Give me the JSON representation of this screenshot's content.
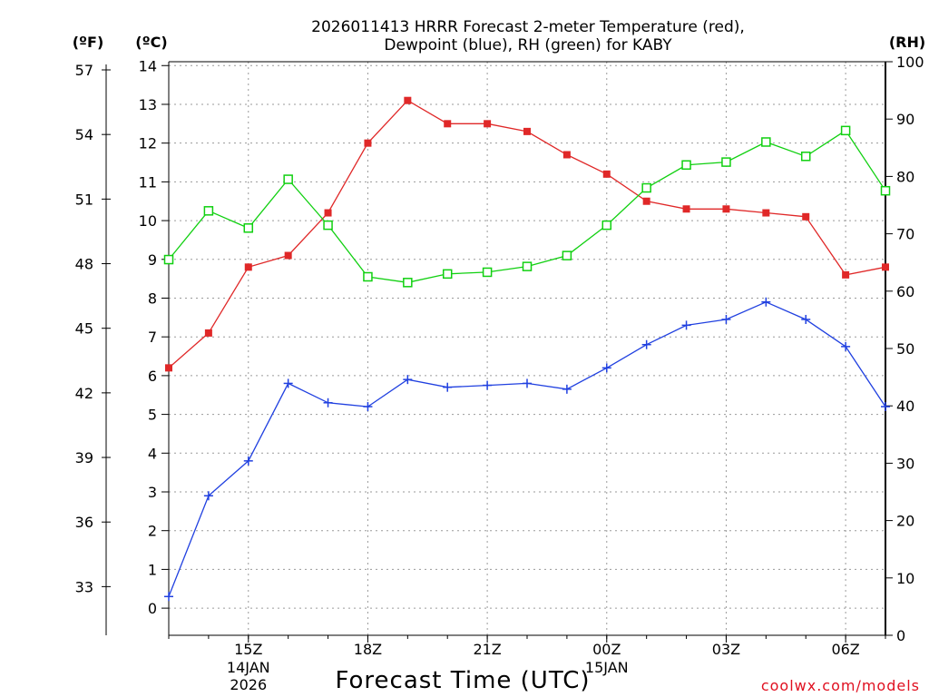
{
  "chart_data": {
    "type": "line",
    "title_lines": [
      "2026011413 HRRR Forecast 2-meter Temperature (red),",
      "Dewpoint (blue), RH (green) for KABY"
    ],
    "xlabel": "Forecast Time (UTC)",
    "credit": "coolwx.com/models",
    "units": {
      "fahrenheit": "(ºF)",
      "celsius": "(ºC)",
      "rh": "(RH)"
    },
    "x_hours": [
      13,
      14,
      15,
      16,
      17,
      18,
      19,
      20,
      21,
      22,
      23,
      24,
      25,
      26,
      27,
      28,
      29,
      30,
      31
    ],
    "xlim": [
      13,
      31
    ],
    "x_ticks": [
      {
        "x": 15,
        "label": "15Z",
        "sublabels": [
          "14JAN",
          "2026"
        ]
      },
      {
        "x": 18,
        "label": "18Z",
        "sublabels": []
      },
      {
        "x": 21,
        "label": "21Z",
        "sublabels": []
      },
      {
        "x": 24,
        "label": "00Z",
        "sublabels": [
          "15JAN"
        ]
      },
      {
        "x": 27,
        "label": "03Z",
        "sublabels": []
      },
      {
        "x": 30,
        "label": "06Z",
        "sublabels": []
      }
    ],
    "y_celsius": {
      "range": [
        -0.7,
        14.1
      ],
      "ticks": [
        0,
        1,
        2,
        3,
        4,
        5,
        6,
        7,
        8,
        9,
        10,
        11,
        12,
        13,
        14
      ]
    },
    "y_fahrenheit": {
      "ticks": [
        33,
        36,
        39,
        42,
        45,
        48,
        51,
        54,
        57
      ]
    },
    "y_rh": {
      "range": [
        0,
        100
      ],
      "ticks": [
        0,
        10,
        20,
        30,
        40,
        50,
        60,
        70,
        80,
        90,
        100
      ]
    },
    "grid": true,
    "series": [
      {
        "name": "2-meter Temperature",
        "axis": "celsius",
        "color": "#e02828",
        "marker": "filled-square",
        "values": [
          6.2,
          7.1,
          8.8,
          9.1,
          10.2,
          12.0,
          13.1,
          12.5,
          12.5,
          12.3,
          11.7,
          11.2,
          10.5,
          10.3,
          10.3,
          10.2,
          10.1,
          8.6,
          8.8
        ]
      },
      {
        "name": "Dewpoint",
        "axis": "celsius",
        "color": "#2040e0",
        "marker": "plus",
        "values": [
          0.3,
          2.9,
          3.8,
          5.8,
          5.3,
          5.2,
          5.9,
          5.7,
          5.75,
          5.8,
          5.65,
          6.2,
          6.8,
          7.3,
          7.45,
          7.9,
          7.45,
          6.75,
          5.2
        ]
      },
      {
        "name": "RH",
        "axis": "rh",
        "color": "#10d010",
        "marker": "open-square",
        "values": [
          65.5,
          74,
          71,
          79.5,
          71.5,
          62.5,
          61.5,
          63,
          63.3,
          64.3,
          66.2,
          71.5,
          78,
          82,
          82.5,
          86,
          83.5,
          88,
          77.5
        ]
      }
    ]
  }
}
